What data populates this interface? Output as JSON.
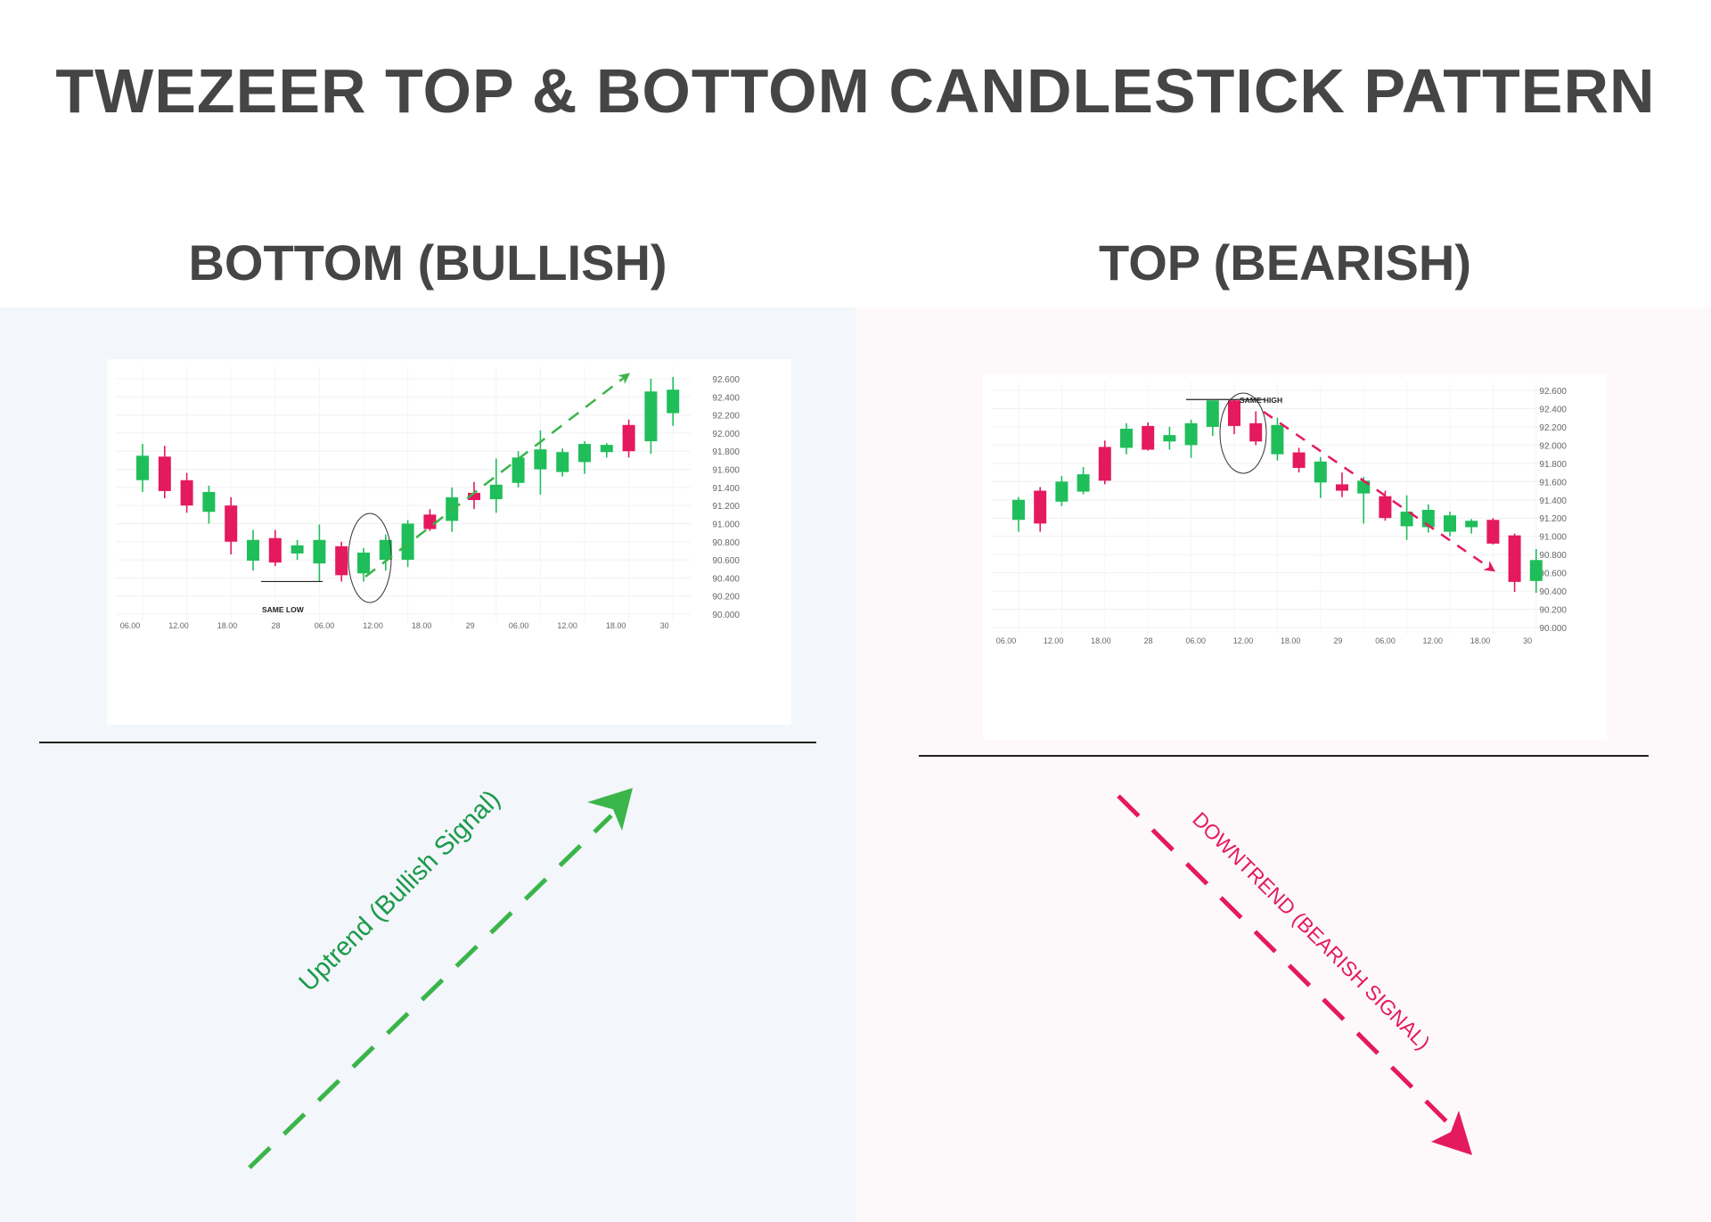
{
  "title": "TWEZEER TOP & BOTTOM CANDLESTICK PATTERN",
  "colors": {
    "bull": "#1fbe5a",
    "bear": "#e5195e",
    "uptrend": "#3ab54a",
    "uptrend_text": "#1a9a4a",
    "downtrend": "#e5195e",
    "title": "#454545"
  },
  "panels": [
    {
      "title": "BOTTOM (BULLISH)",
      "pattern_label": "SAME LOW",
      "trend_label": "Uptrend (Bullish Signal)"
    },
    {
      "title": "TOP (BEARISH)",
      "pattern_label": "SAME HIGH",
      "trend_label": "DOWNTREND (BEARISH SIGNAL)"
    }
  ],
  "chart_data": [
    {
      "type": "candlestick",
      "title": "BOTTOM (BULLISH)",
      "y_ticks": [
        "92.600",
        "92.400",
        "92.200",
        "92.000",
        "91.800",
        "91.600",
        "91.400",
        "91.200",
        "91.000",
        "90.800",
        "90.600",
        "90.400",
        "90.200",
        "90.000"
      ],
      "x_ticks": [
        "06.00",
        "12.00",
        "18.00",
        "28",
        "06.00",
        "12.00",
        "18.00",
        "29",
        "06.00",
        "12.00",
        "18.00",
        "30"
      ],
      "ylim": [
        90.0,
        92.6
      ],
      "grid": true,
      "annotation": "SAME LOW",
      "candles": [
        {
          "open": 91.48,
          "high": 91.88,
          "low": 91.35,
          "close": 91.75
        },
        {
          "open": 91.74,
          "high": 91.86,
          "low": 91.28,
          "close": 91.36
        },
        {
          "open": 91.48,
          "high": 91.56,
          "low": 91.12,
          "close": 91.2
        },
        {
          "open": 91.13,
          "high": 91.42,
          "low": 91.0,
          "close": 91.35
        },
        {
          "open": 91.2,
          "high": 91.29,
          "low": 90.66,
          "close": 90.8
        },
        {
          "open": 90.59,
          "high": 90.93,
          "low": 90.48,
          "close": 90.82
        },
        {
          "open": 90.84,
          "high": 90.93,
          "low": 90.53,
          "close": 90.57
        },
        {
          "open": 90.67,
          "high": 90.82,
          "low": 90.6,
          "close": 90.76
        },
        {
          "open": 90.56,
          "high": 90.99,
          "low": 90.36,
          "close": 90.82
        },
        {
          "open": 90.75,
          "high": 90.8,
          "low": 90.36,
          "close": 90.43
        },
        {
          "open": 90.45,
          "high": 90.73,
          "low": 90.36,
          "close": 90.68
        },
        {
          "open": 90.6,
          "high": 90.88,
          "low": 90.48,
          "close": 90.82
        },
        {
          "open": 90.6,
          "high": 91.04,
          "low": 90.52,
          "close": 91.0
        },
        {
          "open": 91.1,
          "high": 91.16,
          "low": 90.92,
          "close": 90.94
        },
        {
          "open": 91.03,
          "high": 91.4,
          "low": 90.91,
          "close": 91.29
        },
        {
          "open": 91.34,
          "high": 91.46,
          "low": 91.16,
          "close": 91.26
        },
        {
          "open": 91.27,
          "high": 91.72,
          "low": 91.12,
          "close": 91.43
        },
        {
          "open": 91.45,
          "high": 91.8,
          "low": 91.4,
          "close": 91.73
        },
        {
          "open": 91.6,
          "high": 92.03,
          "low": 91.32,
          "close": 91.82
        },
        {
          "open": 91.57,
          "high": 91.83,
          "low": 91.52,
          "close": 91.79
        },
        {
          "open": 91.68,
          "high": 91.91,
          "low": 91.55,
          "close": 91.88
        },
        {
          "open": 91.79,
          "high": 91.89,
          "low": 91.73,
          "close": 91.87
        },
        {
          "open": 92.09,
          "high": 92.15,
          "low": 91.73,
          "close": 91.8
        },
        {
          "open": 91.91,
          "high": 92.6,
          "low": 91.77,
          "close": 92.46
        },
        {
          "open": 92.22,
          "high": 92.62,
          "low": 92.08,
          "close": 92.48
        }
      ]
    },
    {
      "type": "candlestick",
      "title": "TOP (BEARISH)",
      "y_ticks": [
        "92.600",
        "92.400",
        "92.200",
        "92.000",
        "91.800",
        "91.600",
        "91.400",
        "91.200",
        "91.000",
        "90.800",
        "90.600",
        "90.400",
        "90.200",
        "90.000"
      ],
      "x_ticks": [
        "06.00",
        "12.00",
        "18.00",
        "28",
        "06.00",
        "12.00",
        "18.00",
        "29",
        "06.00",
        "12.00",
        "18.00",
        "30"
      ],
      "ylim": [
        90.0,
        92.6
      ],
      "grid": true,
      "annotation": "SAME HIGH",
      "candles": [
        {
          "open": 91.18,
          "high": 91.43,
          "low": 91.05,
          "close": 91.4
        },
        {
          "open": 91.5,
          "high": 91.54,
          "low": 91.05,
          "close": 91.14
        },
        {
          "open": 91.38,
          "high": 91.66,
          "low": 91.33,
          "close": 91.6
        },
        {
          "open": 91.49,
          "high": 91.76,
          "low": 91.46,
          "close": 91.68
        },
        {
          "open": 91.98,
          "high": 92.05,
          "low": 91.57,
          "close": 91.61
        },
        {
          "open": 91.97,
          "high": 92.24,
          "low": 91.9,
          "close": 92.18
        },
        {
          "open": 92.21,
          "high": 92.25,
          "low": 91.94,
          "close": 91.95
        },
        {
          "open": 92.04,
          "high": 92.2,
          "low": 91.95,
          "close": 92.11
        },
        {
          "open": 92.0,
          "high": 92.28,
          "low": 91.86,
          "close": 92.24
        },
        {
          "open": 92.2,
          "high": 92.49,
          "low": 92.1,
          "close": 92.49
        },
        {
          "open": 92.49,
          "high": 92.5,
          "low": 92.12,
          "close": 92.21
        },
        {
          "open": 92.24,
          "high": 92.37,
          "low": 92.0,
          "close": 92.04
        },
        {
          "open": 91.9,
          "high": 92.3,
          "low": 91.83,
          "close": 92.22
        },
        {
          "open": 91.92,
          "high": 91.97,
          "low": 91.7,
          "close": 91.75
        },
        {
          "open": 91.59,
          "high": 91.87,
          "low": 91.42,
          "close": 91.82
        },
        {
          "open": 91.57,
          "high": 91.7,
          "low": 91.43,
          "close": 91.5
        },
        {
          "open": 91.47,
          "high": 91.65,
          "low": 91.14,
          "close": 91.61
        },
        {
          "open": 91.44,
          "high": 91.5,
          "low": 91.17,
          "close": 91.2
        },
        {
          "open": 91.11,
          "high": 91.45,
          "low": 90.96,
          "close": 91.27
        },
        {
          "open": 91.1,
          "high": 91.35,
          "low": 91.04,
          "close": 91.29
        },
        {
          "open": 91.05,
          "high": 91.27,
          "low": 91.0,
          "close": 91.23
        },
        {
          "open": 91.1,
          "high": 91.19,
          "low": 91.03,
          "close": 91.17
        },
        {
          "open": 91.18,
          "high": 91.2,
          "low": 90.91,
          "close": 90.92
        },
        {
          "open": 91.01,
          "high": 91.03,
          "low": 90.39,
          "close": 90.5
        },
        {
          "open": 90.51,
          "high": 90.86,
          "low": 90.38,
          "close": 90.74
        }
      ]
    }
  ]
}
